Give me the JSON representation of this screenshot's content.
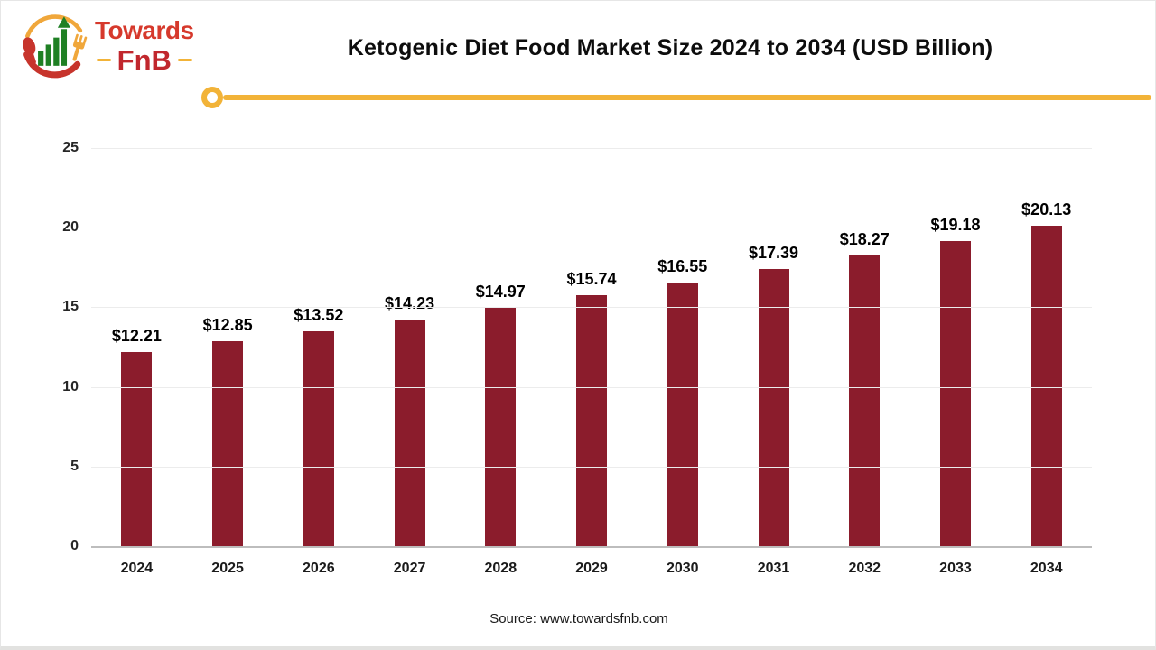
{
  "brand": {
    "line1": "Towards",
    "line2": "FnB"
  },
  "header": {
    "title": "Ketogenic Diet Food Market Size 2024 to 2034 (USD Billion)"
  },
  "chart_data": {
    "type": "bar",
    "title": "Ketogenic Diet Food Market Size 2024 to 2034 (USD Billion)",
    "categories": [
      "2024",
      "2025",
      "2026",
      "2027",
      "2028",
      "2029",
      "2030",
      "2031",
      "2032",
      "2033",
      "2034"
    ],
    "values": [
      12.21,
      12.85,
      13.52,
      14.23,
      14.97,
      15.74,
      16.55,
      17.39,
      18.27,
      19.18,
      20.13
    ],
    "labels": [
      "$12.21",
      "$12.85",
      "$13.52",
      "$14.23",
      "$14.97",
      "$15.74",
      "$16.55",
      "$17.39",
      "$18.27",
      "$19.18",
      "$20.13"
    ],
    "xlabel": "",
    "ylabel": "",
    "ylim": [
      0,
      25
    ],
    "yticks": [
      0,
      5,
      10,
      15,
      20,
      25
    ],
    "grid": true,
    "legend": false,
    "bar_color": "#8b1c2c",
    "accent_gold": "#f2b338",
    "brand_red": "#c1272d"
  },
  "footer": {
    "source": "Source: www.towardsfnb.com"
  }
}
